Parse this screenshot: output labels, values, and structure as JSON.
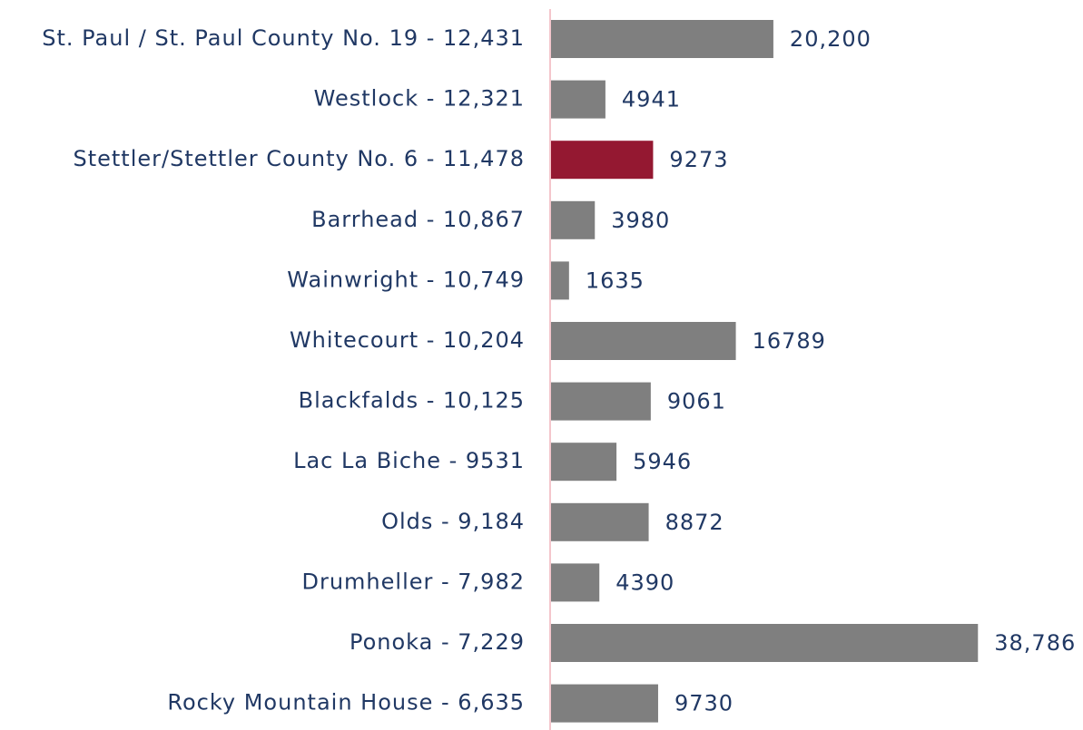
{
  "chart_data": {
    "type": "barh",
    "categories": [
      "St. Paul / St. Paul County No. 19 - 12,431",
      "Westlock - 12,321",
      "Stettler/Stettler County No. 6 - 11,478",
      "Barrhead - 10,867",
      "Wainwright - 10,749",
      "Whitecourt - 10,204",
      "Blackfalds - 10,125",
      "Lac La Biche - 9531",
      "Olds - 9,184",
      "Drumheller - 7,982",
      "Ponoka - 7,229",
      "Rocky Mountain House - 6,635"
    ],
    "values": [
      20200,
      4941,
      9273,
      3980,
      1635,
      16789,
      9061,
      5946,
      8872,
      4390,
      38786,
      9730
    ],
    "value_labels": [
      "20,200",
      "4941",
      "9273",
      "3980",
      "1635",
      "16789",
      "9061",
      "5946",
      "8872",
      "4390",
      "38,786",
      "9730"
    ],
    "colors": [
      "#7f7f7f",
      "#7f7f7f",
      "#941831",
      "#7f7f7f",
      "#7f7f7f",
      "#7f7f7f",
      "#7f7f7f",
      "#7f7f7f",
      "#7f7f7f",
      "#7f7f7f",
      "#7f7f7f",
      "#7f7f7f"
    ],
    "xlim": [
      0,
      40000
    ]
  }
}
